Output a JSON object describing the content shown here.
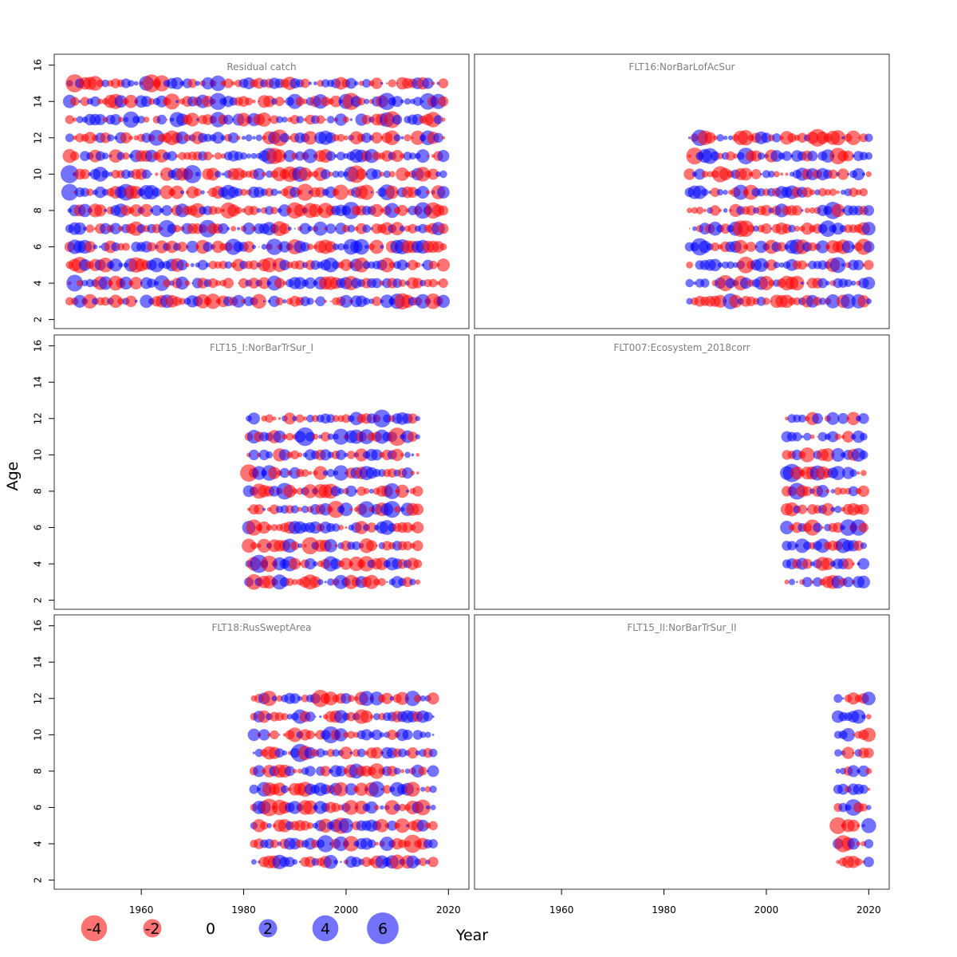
{
  "chart_data": {
    "type": "scatter",
    "subtype": "bubble",
    "xlabel": "Year",
    "ylabel": "Age",
    "xlim": [
      1943,
      2024
    ],
    "ylim": [
      1.5,
      16.6
    ],
    "x_ticks": [
      1960,
      1980,
      2000,
      2020
    ],
    "y_ticks": [
      2,
      4,
      6,
      8,
      10,
      12,
      14,
      16
    ],
    "colors": {
      "positive": "#0000ff",
      "negative": "#ff0000",
      "opacity": 0.55
    },
    "legend": {
      "placement": "bottom-left",
      "entries": [
        {
          "label": "-4",
          "value": -4
        },
        {
          "label": "-2",
          "value": -2
        },
        {
          "label": "0",
          "value": 0
        },
        {
          "label": "2",
          "value": 2
        },
        {
          "label": "4",
          "value": 4
        },
        {
          "label": "6",
          "value": 6
        }
      ]
    },
    "panels": [
      {
        "title": "Residual catch",
        "years": [
          1946,
          2019
        ],
        "ages": [
          3,
          15
        ]
      },
      {
        "title": "FLT16:NorBarLofAcSur",
        "years": [
          1985,
          2020
        ],
        "ages": [
          3,
          12
        ]
      },
      {
        "title": "FLT15_I:NorBarTrSur_I",
        "years": [
          1981,
          2014
        ],
        "ages": [
          3,
          12
        ]
      },
      {
        "title": "FLT007:Ecosystem_2018corr",
        "years": [
          2004,
          2019
        ],
        "ages": [
          3,
          12
        ]
      },
      {
        "title": "FLT18:RusSweptArea",
        "years": [
          1982,
          2017
        ],
        "ages": [
          3,
          12
        ]
      },
      {
        "title": "FLT15_II:NorBarTrSur_II",
        "years": [
          2014,
          2020
        ],
        "ages": [
          3,
          12
        ]
      }
    ]
  }
}
